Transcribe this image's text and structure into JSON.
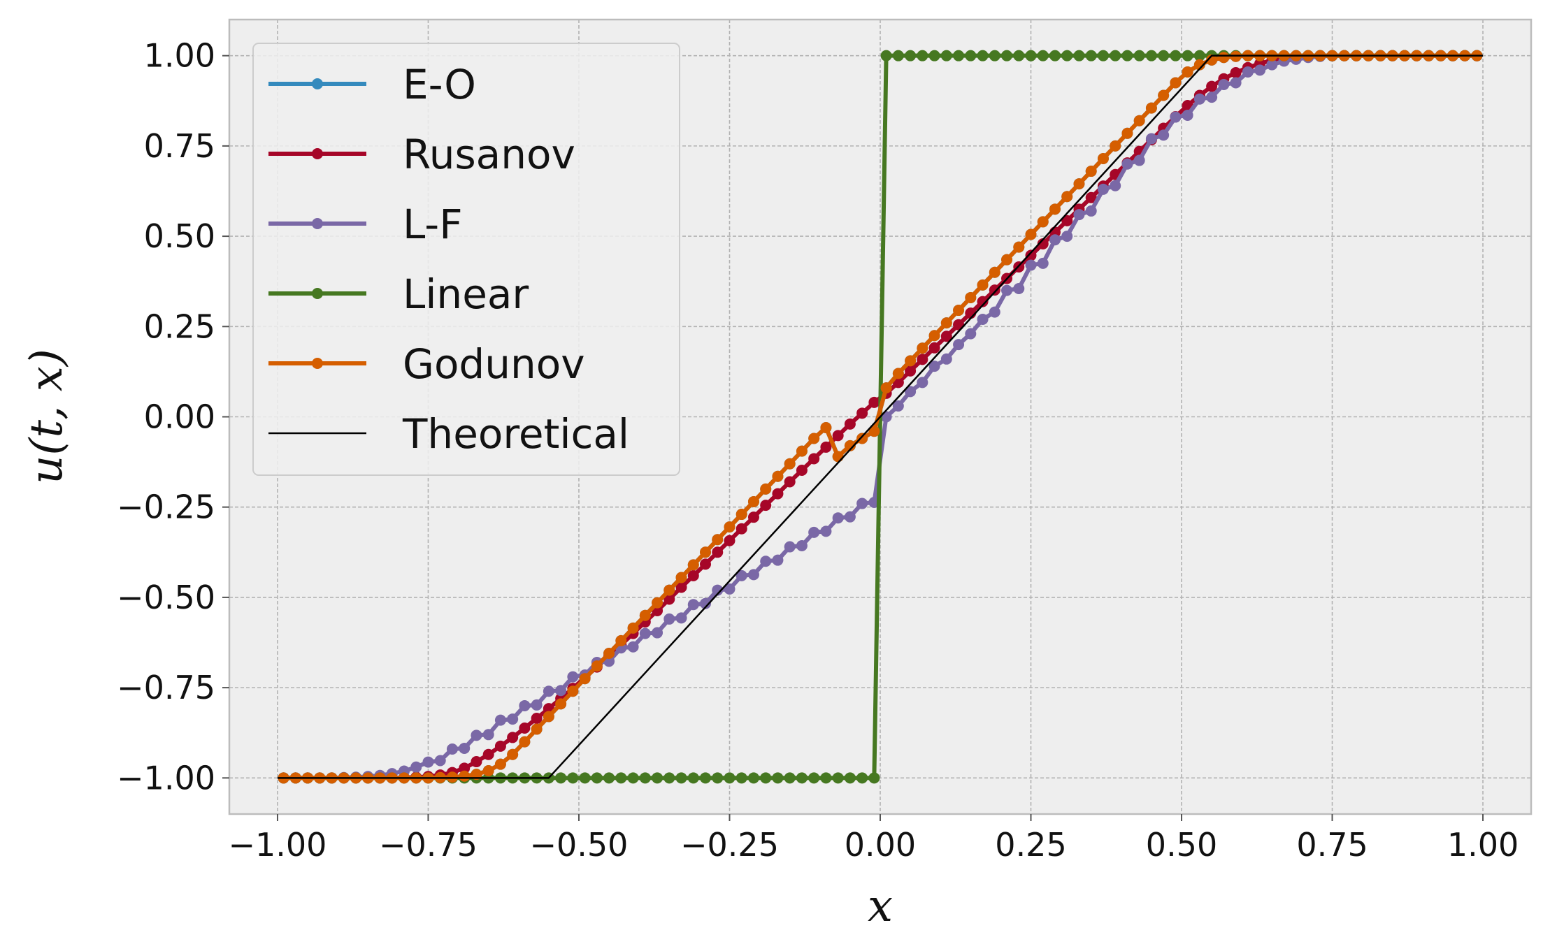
{
  "chart_data": {
    "type": "line",
    "title": "",
    "xlabel": "x",
    "ylabel": "u(t, x)",
    "xlim": [
      -1.08,
      1.08
    ],
    "ylim": [
      -1.1,
      1.1
    ],
    "grid": true,
    "legend_placement": "top-left",
    "xticks": [
      -1.0,
      -0.75,
      -0.5,
      -0.25,
      0.0,
      0.25,
      0.5,
      0.75,
      1.0
    ],
    "xtick_labels": [
      "−1.00",
      "−0.75",
      "−0.50",
      "−0.25",
      "0.00",
      "0.25",
      "0.50",
      "0.75",
      "1.00"
    ],
    "yticks": [
      1.0,
      0.75,
      0.5,
      0.25,
      0.0,
      -0.25,
      -0.5,
      -0.75,
      -1.0
    ],
    "ytick_labels": [
      "1.00",
      "0.75",
      "0.50",
      "0.25",
      "0.00",
      "−0.25",
      "−0.50",
      "−0.75",
      "−1.00"
    ],
    "colors": {
      "E-O": "#348abd",
      "Rusanov": "#a60628",
      "L-F": "#7a68a6",
      "Linear": "#467821",
      "Godunov": "#d55e00",
      "Theoretical": "#000000",
      "axes_bg": "#eeeeee",
      "grid": "#b2b2b2"
    },
    "series": [
      {
        "name": "E-O",
        "x": [
          -0.99,
          -0.97,
          -0.95,
          -0.93,
          -0.91,
          -0.89,
          -0.87,
          -0.85,
          -0.83,
          -0.81,
          -0.79,
          -0.77,
          -0.75,
          -0.73,
          -0.71,
          -0.69,
          -0.67,
          -0.65,
          -0.63,
          -0.61,
          -0.59,
          -0.57,
          -0.55,
          -0.53,
          -0.51,
          -0.49,
          -0.47,
          -0.45,
          -0.43,
          -0.41,
          -0.39,
          -0.37,
          -0.35,
          -0.33,
          -0.31,
          -0.29,
          -0.27,
          -0.25,
          -0.23,
          -0.21,
          -0.19,
          -0.17,
          -0.15,
          -0.13,
          -0.11,
          -0.09,
          -0.07,
          -0.05,
          -0.03,
          -0.01,
          0.01,
          0.03,
          0.05,
          0.07,
          0.09,
          0.11,
          0.13,
          0.15,
          0.17,
          0.19,
          0.21,
          0.23,
          0.25,
          0.27,
          0.29,
          0.31,
          0.33,
          0.35,
          0.37,
          0.39,
          0.41,
          0.43,
          0.45,
          0.47,
          0.49,
          0.51,
          0.53,
          0.55,
          0.57,
          0.59,
          0.61,
          0.63,
          0.65,
          0.67,
          0.69,
          0.71,
          0.73,
          0.75,
          0.77,
          0.79,
          0.81,
          0.83,
          0.85,
          0.87,
          0.89,
          0.91,
          0.93,
          0.95,
          0.97,
          0.99
        ],
        "y": [
          -1.0,
          -1.0,
          -1.0,
          -1.0,
          -1.0,
          -1.0,
          -1.0,
          -1.0,
          -1.0,
          -1.0,
          -1.0,
          -1.0,
          -1.0,
          -0.999,
          -0.998,
          -0.995,
          -0.99,
          -0.98,
          -0.962,
          -0.935,
          -0.9,
          -0.865,
          -0.83,
          -0.795,
          -0.76,
          -0.725,
          -0.69,
          -0.655,
          -0.62,
          -0.585,
          -0.55,
          -0.515,
          -0.48,
          -0.445,
          -0.41,
          -0.375,
          -0.34,
          -0.305,
          -0.27,
          -0.235,
          -0.2,
          -0.165,
          -0.13,
          -0.095,
          -0.06,
          -0.03,
          -0.11,
          -0.08,
          -0.06,
          -0.04,
          0.08,
          0.12,
          0.155,
          0.19,
          0.225,
          0.26,
          0.295,
          0.33,
          0.365,
          0.4,
          0.435,
          0.47,
          0.505,
          0.54,
          0.575,
          0.61,
          0.645,
          0.68,
          0.715,
          0.75,
          0.785,
          0.82,
          0.855,
          0.89,
          0.925,
          0.955,
          0.975,
          0.988,
          0.995,
          0.998,
          1.0,
          1.0,
          1.0,
          1.0,
          1.0,
          1.0,
          1.0,
          1.0,
          1.0,
          1.0,
          1.0,
          1.0,
          1.0,
          1.0,
          1.0,
          1.0,
          1.0,
          1.0,
          1.0,
          1.0
        ]
      },
      {
        "name": "Rusanov",
        "x": [
          -0.99,
          -0.97,
          -0.95,
          -0.93,
          -0.91,
          -0.89,
          -0.87,
          -0.85,
          -0.83,
          -0.81,
          -0.79,
          -0.77,
          -0.75,
          -0.73,
          -0.71,
          -0.69,
          -0.67,
          -0.65,
          -0.63,
          -0.61,
          -0.59,
          -0.57,
          -0.55,
          -0.53,
          -0.51,
          -0.49,
          -0.47,
          -0.45,
          -0.43,
          -0.41,
          -0.39,
          -0.37,
          -0.35,
          -0.33,
          -0.31,
          -0.29,
          -0.27,
          -0.25,
          -0.23,
          -0.21,
          -0.19,
          -0.17,
          -0.15,
          -0.13,
          -0.11,
          -0.09,
          -0.07,
          -0.05,
          -0.03,
          -0.01,
          0.01,
          0.03,
          0.05,
          0.07,
          0.09,
          0.11,
          0.13,
          0.15,
          0.17,
          0.19,
          0.21,
          0.23,
          0.25,
          0.27,
          0.29,
          0.31,
          0.33,
          0.35,
          0.37,
          0.39,
          0.41,
          0.43,
          0.45,
          0.47,
          0.49,
          0.51,
          0.53,
          0.55,
          0.57,
          0.59,
          0.61,
          0.63,
          0.65,
          0.67,
          0.69,
          0.71,
          0.73,
          0.75,
          0.77,
          0.79,
          0.81,
          0.83,
          0.85,
          0.87,
          0.89,
          0.91,
          0.93,
          0.95,
          0.97,
          0.99
        ],
        "y": [
          -1.0,
          -1.0,
          -1.0,
          -1.0,
          -1.0,
          -1.0,
          -1.0,
          -1.0,
          -1.0,
          -1.0,
          -0.999,
          -0.998,
          -0.996,
          -0.992,
          -0.985,
          -0.973,
          -0.955,
          -0.935,
          -0.912,
          -0.888,
          -0.862,
          -0.835,
          -0.808,
          -0.78,
          -0.752,
          -0.722,
          -0.693,
          -0.662,
          -0.632,
          -0.6,
          -0.568,
          -0.537,
          -0.505,
          -0.472,
          -0.44,
          -0.408,
          -0.375,
          -0.343,
          -0.31,
          -0.278,
          -0.245,
          -0.213,
          -0.18,
          -0.148,
          -0.116,
          -0.084,
          -0.052,
          -0.02,
          0.01,
          0.04,
          0.065,
          0.095,
          0.127,
          0.159,
          0.191,
          0.223,
          0.255,
          0.287,
          0.319,
          0.351,
          0.383,
          0.415,
          0.447,
          0.479,
          0.511,
          0.543,
          0.575,
          0.607,
          0.639,
          0.671,
          0.703,
          0.735,
          0.767,
          0.799,
          0.831,
          0.862,
          0.89,
          0.915,
          0.936,
          0.953,
          0.967,
          0.978,
          0.987,
          0.993,
          0.997,
          0.999,
          1.0,
          1.0,
          1.0,
          1.0,
          1.0,
          1.0,
          1.0,
          1.0,
          1.0,
          1.0,
          1.0,
          1.0,
          1.0,
          1.0
        ]
      },
      {
        "name": "L-F",
        "x": [
          -0.99,
          -0.97,
          -0.95,
          -0.93,
          -0.91,
          -0.89,
          -0.87,
          -0.85,
          -0.83,
          -0.81,
          -0.79,
          -0.77,
          -0.75,
          -0.73,
          -0.71,
          -0.69,
          -0.67,
          -0.65,
          -0.63,
          -0.61,
          -0.59,
          -0.57,
          -0.55,
          -0.53,
          -0.51,
          -0.49,
          -0.47,
          -0.45,
          -0.43,
          -0.41,
          -0.39,
          -0.37,
          -0.35,
          -0.33,
          -0.31,
          -0.29,
          -0.27,
          -0.25,
          -0.23,
          -0.21,
          -0.19,
          -0.17,
          -0.15,
          -0.13,
          -0.11,
          -0.09,
          -0.07,
          -0.05,
          -0.03,
          -0.01,
          0.01,
          0.03,
          0.05,
          0.07,
          0.09,
          0.11,
          0.13,
          0.15,
          0.17,
          0.19,
          0.21,
          0.23,
          0.25,
          0.27,
          0.29,
          0.31,
          0.33,
          0.35,
          0.37,
          0.39,
          0.41,
          0.43,
          0.45,
          0.47,
          0.49,
          0.51,
          0.53,
          0.55,
          0.57,
          0.59,
          0.61,
          0.63,
          0.65,
          0.67,
          0.69,
          0.71,
          0.73,
          0.75,
          0.77,
          0.79,
          0.81,
          0.83,
          0.85,
          0.87,
          0.89,
          0.91,
          0.93,
          0.95,
          0.97,
          0.99
        ],
        "y": [
          -1.0,
          -1.0,
          -1.0,
          -1.0,
          -1.0,
          -0.999,
          -0.998,
          -0.996,
          -0.993,
          -0.988,
          -0.981,
          -0.97,
          -0.956,
          -0.952,
          -0.92,
          -0.918,
          -0.882,
          -0.88,
          -0.84,
          -0.837,
          -0.8,
          -0.798,
          -0.76,
          -0.758,
          -0.72,
          -0.715,
          -0.68,
          -0.677,
          -0.64,
          -0.637,
          -0.6,
          -0.598,
          -0.56,
          -0.557,
          -0.52,
          -0.517,
          -0.48,
          -0.477,
          -0.44,
          -0.437,
          -0.4,
          -0.397,
          -0.36,
          -0.357,
          -0.32,
          -0.317,
          -0.28,
          -0.277,
          -0.24,
          -0.237,
          0.0,
          0.03,
          0.07,
          0.095,
          0.14,
          0.16,
          0.2,
          0.23,
          0.27,
          0.29,
          0.35,
          0.355,
          0.42,
          0.425,
          0.49,
          0.5,
          0.56,
          0.57,
          0.63,
          0.64,
          0.7,
          0.71,
          0.77,
          0.78,
          0.83,
          0.835,
          0.88,
          0.885,
          0.92,
          0.925,
          0.955,
          0.96,
          0.975,
          0.985,
          0.99,
          0.995,
          0.998,
          1.0,
          1.0,
          1.0,
          1.0,
          1.0,
          1.0,
          1.0,
          1.0,
          1.0,
          1.0,
          1.0,
          1.0,
          1.0
        ]
      },
      {
        "name": "Linear",
        "x": [
          -0.99,
          -0.97,
          -0.95,
          -0.93,
          -0.91,
          -0.89,
          -0.87,
          -0.85,
          -0.83,
          -0.81,
          -0.79,
          -0.77,
          -0.75,
          -0.73,
          -0.71,
          -0.69,
          -0.67,
          -0.65,
          -0.63,
          -0.61,
          -0.59,
          -0.57,
          -0.55,
          -0.53,
          -0.51,
          -0.49,
          -0.47,
          -0.45,
          -0.43,
          -0.41,
          -0.39,
          -0.37,
          -0.35,
          -0.33,
          -0.31,
          -0.29,
          -0.27,
          -0.25,
          -0.23,
          -0.21,
          -0.19,
          -0.17,
          -0.15,
          -0.13,
          -0.11,
          -0.09,
          -0.07,
          -0.05,
          -0.03,
          -0.01,
          0.01,
          0.03,
          0.05,
          0.07,
          0.09,
          0.11,
          0.13,
          0.15,
          0.17,
          0.19,
          0.21,
          0.23,
          0.25,
          0.27,
          0.29,
          0.31,
          0.33,
          0.35,
          0.37,
          0.39,
          0.41,
          0.43,
          0.45,
          0.47,
          0.49,
          0.51,
          0.53,
          0.55,
          0.57,
          0.59,
          0.61,
          0.63,
          0.65,
          0.67,
          0.69,
          0.71,
          0.73,
          0.75,
          0.77,
          0.79,
          0.81,
          0.83,
          0.85,
          0.87,
          0.89,
          0.91,
          0.93,
          0.95,
          0.97,
          0.99
        ],
        "y": [
          -1.0,
          -1.0,
          -1.0,
          -1.0,
          -1.0,
          -1.0,
          -1.0,
          -1.0,
          -1.0,
          -1.0,
          -1.0,
          -1.0,
          -1.0,
          -1.0,
          -1.0,
          -1.0,
          -1.0,
          -1.0,
          -1.0,
          -1.0,
          -1.0,
          -1.0,
          -1.0,
          -1.0,
          -1.0,
          -1.0,
          -1.0,
          -1.0,
          -1.0,
          -1.0,
          -1.0,
          -1.0,
          -1.0,
          -1.0,
          -1.0,
          -1.0,
          -1.0,
          -1.0,
          -1.0,
          -1.0,
          -1.0,
          -1.0,
          -1.0,
          -1.0,
          -1.0,
          -1.0,
          -1.0,
          -1.0,
          -1.0,
          -1.0,
          1.0,
          1.0,
          1.0,
          1.0,
          1.0,
          1.0,
          1.0,
          1.0,
          1.0,
          1.0,
          1.0,
          1.0,
          1.0,
          1.0,
          1.0,
          1.0,
          1.0,
          1.0,
          1.0,
          1.0,
          1.0,
          1.0,
          1.0,
          1.0,
          1.0,
          1.0,
          1.0,
          1.0,
          1.0,
          1.0,
          1.0,
          1.0,
          1.0,
          1.0,
          1.0,
          1.0,
          1.0,
          1.0,
          1.0,
          1.0,
          1.0,
          1.0,
          1.0,
          1.0,
          1.0,
          1.0,
          1.0,
          1.0,
          1.0,
          1.0
        ]
      },
      {
        "name": "Godunov",
        "x": [
          -0.99,
          -0.97,
          -0.95,
          -0.93,
          -0.91,
          -0.89,
          -0.87,
          -0.85,
          -0.83,
          -0.81,
          -0.79,
          -0.77,
          -0.75,
          -0.73,
          -0.71,
          -0.69,
          -0.67,
          -0.65,
          -0.63,
          -0.61,
          -0.59,
          -0.57,
          -0.55,
          -0.53,
          -0.51,
          -0.49,
          -0.47,
          -0.45,
          -0.43,
          -0.41,
          -0.39,
          -0.37,
          -0.35,
          -0.33,
          -0.31,
          -0.29,
          -0.27,
          -0.25,
          -0.23,
          -0.21,
          -0.19,
          -0.17,
          -0.15,
          -0.13,
          -0.11,
          -0.09,
          -0.07,
          -0.05,
          -0.03,
          -0.01,
          0.01,
          0.03,
          0.05,
          0.07,
          0.09,
          0.11,
          0.13,
          0.15,
          0.17,
          0.19,
          0.21,
          0.23,
          0.25,
          0.27,
          0.29,
          0.31,
          0.33,
          0.35,
          0.37,
          0.39,
          0.41,
          0.43,
          0.45,
          0.47,
          0.49,
          0.51,
          0.53,
          0.55,
          0.57,
          0.59,
          0.61,
          0.63,
          0.65,
          0.67,
          0.69,
          0.71,
          0.73,
          0.75,
          0.77,
          0.79,
          0.81,
          0.83,
          0.85,
          0.87,
          0.89,
          0.91,
          0.93,
          0.95,
          0.97,
          0.99
        ],
        "y": [
          -1.0,
          -1.0,
          -1.0,
          -1.0,
          -1.0,
          -1.0,
          -1.0,
          -1.0,
          -1.0,
          -1.0,
          -1.0,
          -1.0,
          -1.0,
          -0.999,
          -0.998,
          -0.995,
          -0.99,
          -0.98,
          -0.962,
          -0.935,
          -0.9,
          -0.865,
          -0.83,
          -0.795,
          -0.76,
          -0.725,
          -0.69,
          -0.655,
          -0.62,
          -0.585,
          -0.55,
          -0.515,
          -0.48,
          -0.445,
          -0.41,
          -0.375,
          -0.34,
          -0.305,
          -0.27,
          -0.235,
          -0.2,
          -0.165,
          -0.13,
          -0.095,
          -0.06,
          -0.03,
          -0.11,
          -0.08,
          -0.06,
          -0.04,
          0.08,
          0.12,
          0.155,
          0.19,
          0.225,
          0.26,
          0.295,
          0.33,
          0.365,
          0.4,
          0.435,
          0.47,
          0.505,
          0.54,
          0.575,
          0.61,
          0.645,
          0.68,
          0.715,
          0.75,
          0.785,
          0.82,
          0.855,
          0.89,
          0.925,
          0.955,
          0.975,
          0.988,
          0.995,
          0.998,
          1.0,
          1.0,
          1.0,
          1.0,
          1.0,
          1.0,
          1.0,
          1.0,
          1.0,
          1.0,
          1.0,
          1.0,
          1.0,
          1.0,
          1.0,
          1.0,
          1.0,
          1.0,
          1.0,
          1.0
        ]
      },
      {
        "name": "Theoretical",
        "x": [
          -1.0,
          -0.55,
          0.55,
          1.0
        ],
        "y": [
          -1.0,
          -1.0,
          1.0,
          1.0
        ]
      }
    ]
  }
}
